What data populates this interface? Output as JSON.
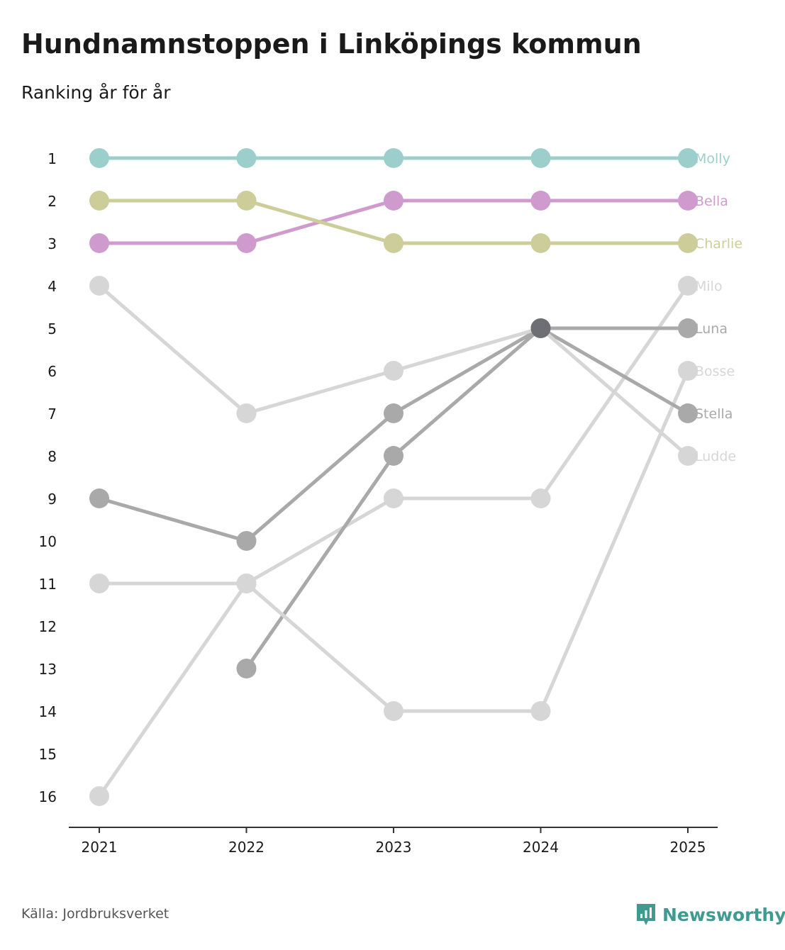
{
  "title": "Hundnamnstoppen i Linköpings kommun",
  "subtitle": "Ranking år för år",
  "source": "Källa: Jordbruksverket",
  "brand": "Newsworthy",
  "chart_data": {
    "type": "line",
    "chart_kind": "bump",
    "x": [
      "2021",
      "2022",
      "2023",
      "2024",
      "2025"
    ],
    "y_ticks": [
      "1",
      "2",
      "3",
      "4",
      "5",
      "6",
      "7",
      "8",
      "9",
      "10",
      "11",
      "12",
      "13",
      "14",
      "15",
      "16"
    ],
    "ylim": [
      1,
      16
    ],
    "y_inverted": true,
    "series": [
      {
        "name": "Molly",
        "values": [
          1,
          1,
          1,
          1,
          1
        ],
        "color": "#9ccfcc",
        "highlight": true
      },
      {
        "name": "Bella",
        "values": [
          3,
          3,
          2,
          2,
          2
        ],
        "color": "#cf9bcf",
        "highlight": true
      },
      {
        "name": "Charlie",
        "values": [
          2,
          2,
          3,
          3,
          3
        ],
        "color": "#cdcd9a",
        "highlight": true
      },
      {
        "name": "Milo",
        "values": [
          16,
          11,
          9,
          9,
          4
        ],
        "color": "#d6d6d6",
        "highlight": false
      },
      {
        "name": "Luna",
        "values": [
          null,
          13,
          8,
          5,
          5
        ],
        "color": "#a9a9a9",
        "highlight": false
      },
      {
        "name": "Bosse",
        "values": [
          11,
          11,
          14,
          14,
          6
        ],
        "color": "#d6d6d6",
        "highlight": false
      },
      {
        "name": "Stella",
        "values": [
          9,
          10,
          7,
          5,
          7
        ],
        "color": "#a9a9a9",
        "highlight": false
      },
      {
        "name": "Ludde",
        "values": [
          4,
          7,
          6,
          5,
          8
        ],
        "color": "#d6d6d6",
        "highlight": false
      }
    ]
  },
  "colors": {
    "axis": "#333333",
    "brand": "#3f9b8f",
    "overlap_dot": "#6e6e75"
  }
}
